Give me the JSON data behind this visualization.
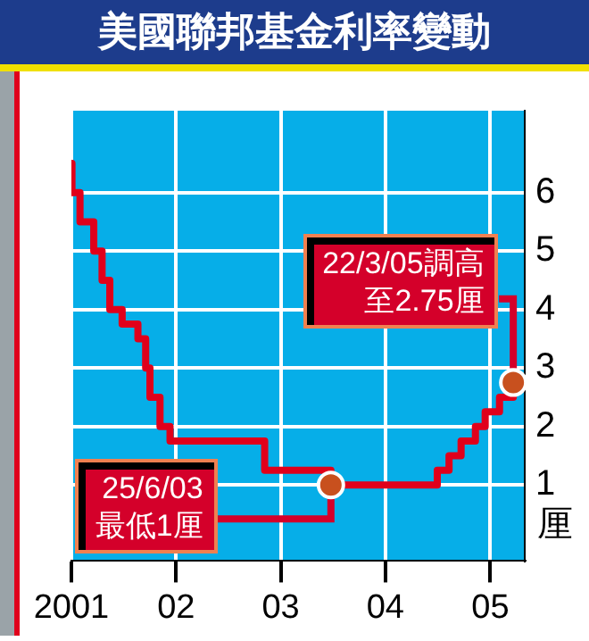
{
  "chart_data": {
    "type": "step",
    "title": "美國聯邦基金利率變動",
    "ylabel": "厘",
    "x": [
      "2001-01-01",
      "2001-01-03",
      "2001-01-31",
      "2001-03-20",
      "2001-04-18",
      "2001-05-15",
      "2001-06-27",
      "2001-08-21",
      "2001-09-17",
      "2001-10-02",
      "2001-11-06",
      "2001-12-11",
      "2002-11-06",
      "2003-06-25",
      "2004-06-30",
      "2004-08-10",
      "2004-09-21",
      "2004-11-10",
      "2004-12-14",
      "2005-02-02",
      "2005-03-22"
    ],
    "series": [
      {
        "color": "#e0001b",
        "values": [
          6.5,
          6,
          5.5,
          5,
          4.5,
          4,
          3.75,
          3.5,
          3,
          2.5,
          2,
          1.75,
          1.25,
          1,
          1.25,
          1.5,
          1.75,
          2,
          2.25,
          2.5,
          2.75
        ]
      }
    ],
    "xlim": [
      "2001-01-01",
      "2005-05-01"
    ],
    "xticks": [
      {
        "value": "2001-01-01",
        "label": "2001"
      },
      {
        "value": "2002-01-01",
        "label": "02"
      },
      {
        "value": "2003-01-01",
        "label": "03"
      },
      {
        "value": "2004-01-01",
        "label": "04"
      },
      {
        "value": "2005-01-01",
        "label": "05"
      }
    ],
    "ylim": [
      -0.3,
      7.4
    ],
    "yticks": [
      1,
      2,
      3,
      4,
      5,
      6
    ],
    "grid": true,
    "annotations": [
      {
        "text": "22/3/05調高",
        "x": "2005-03-22",
        "y": 2.75
      },
      {
        "text": "至2.75厘",
        "x": "2005-03-22",
        "y": 2.75
      },
      {
        "text": "25/6/03",
        "x": "2003-06-25",
        "y": 1
      },
      {
        "text": "最低1厘",
        "x": "2003-06-25",
        "y": 1
      }
    ]
  }
}
